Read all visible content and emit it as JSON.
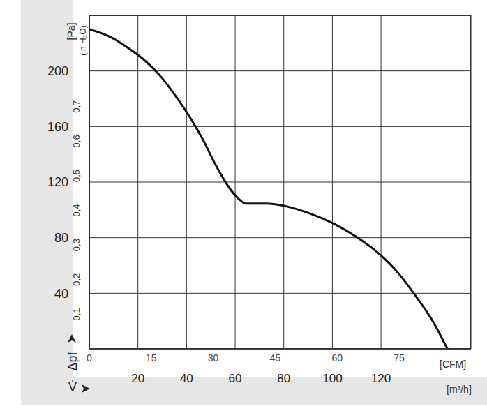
{
  "chart_data": {
    "type": "line",
    "x_label": "V̇",
    "y_label": "Δpf",
    "color": "#111111",
    "line_style": "solid",
    "marker": "none",
    "grid": true,
    "x": [
      0,
      9.2,
      16.4,
      22.2,
      29.4,
      35.1,
      40.9,
      46.6,
      52.4,
      58.1,
      62.4,
      64.5,
      72.5,
      81.2,
      89.8,
      101.3,
      110,
      118.6,
      127.2,
      134.4,
      141.6,
      147.3
    ],
    "values": [
      230,
      224,
      216,
      208.5,
      196,
      183,
      168,
      151,
      131,
      114.6,
      106.5,
      104.5,
      104.5,
      102.5,
      98,
      89.4,
      80.4,
      69.3,
      54.3,
      37.7,
      19,
      0
    ],
    "xlim": [
      0,
      157
    ],
    "xticks": [
      20,
      40,
      60,
      80,
      100,
      120
    ],
    "x_unit": "[m³/h]",
    "ylim": [
      0,
      240
    ],
    "yticks": [
      40,
      80,
      120,
      160,
      200
    ],
    "y_unit": "[Pa]",
    "x2lim": [
      0,
      92.4
    ],
    "x2ticks": [
      0,
      15,
      30,
      45,
      60,
      75
    ],
    "x2_unit": "[CFM]",
    "y2lim": [
      0,
      0.9635
    ],
    "y2ticks": [
      {
        "value": 0.1,
        "label": "0,1"
      },
      {
        "value": 0.2,
        "label": "0,2"
      },
      {
        "value": 0.3,
        "label": "0,3"
      },
      {
        "value": 0.4,
        "label": "0,4"
      },
      {
        "value": 0.5,
        "label": "0,5"
      },
      {
        "value": 0.6,
        "label": "0,6"
      },
      {
        "value": 0.7,
        "label": "0,7"
      }
    ],
    "y2_unit": "(in H₂O)"
  }
}
